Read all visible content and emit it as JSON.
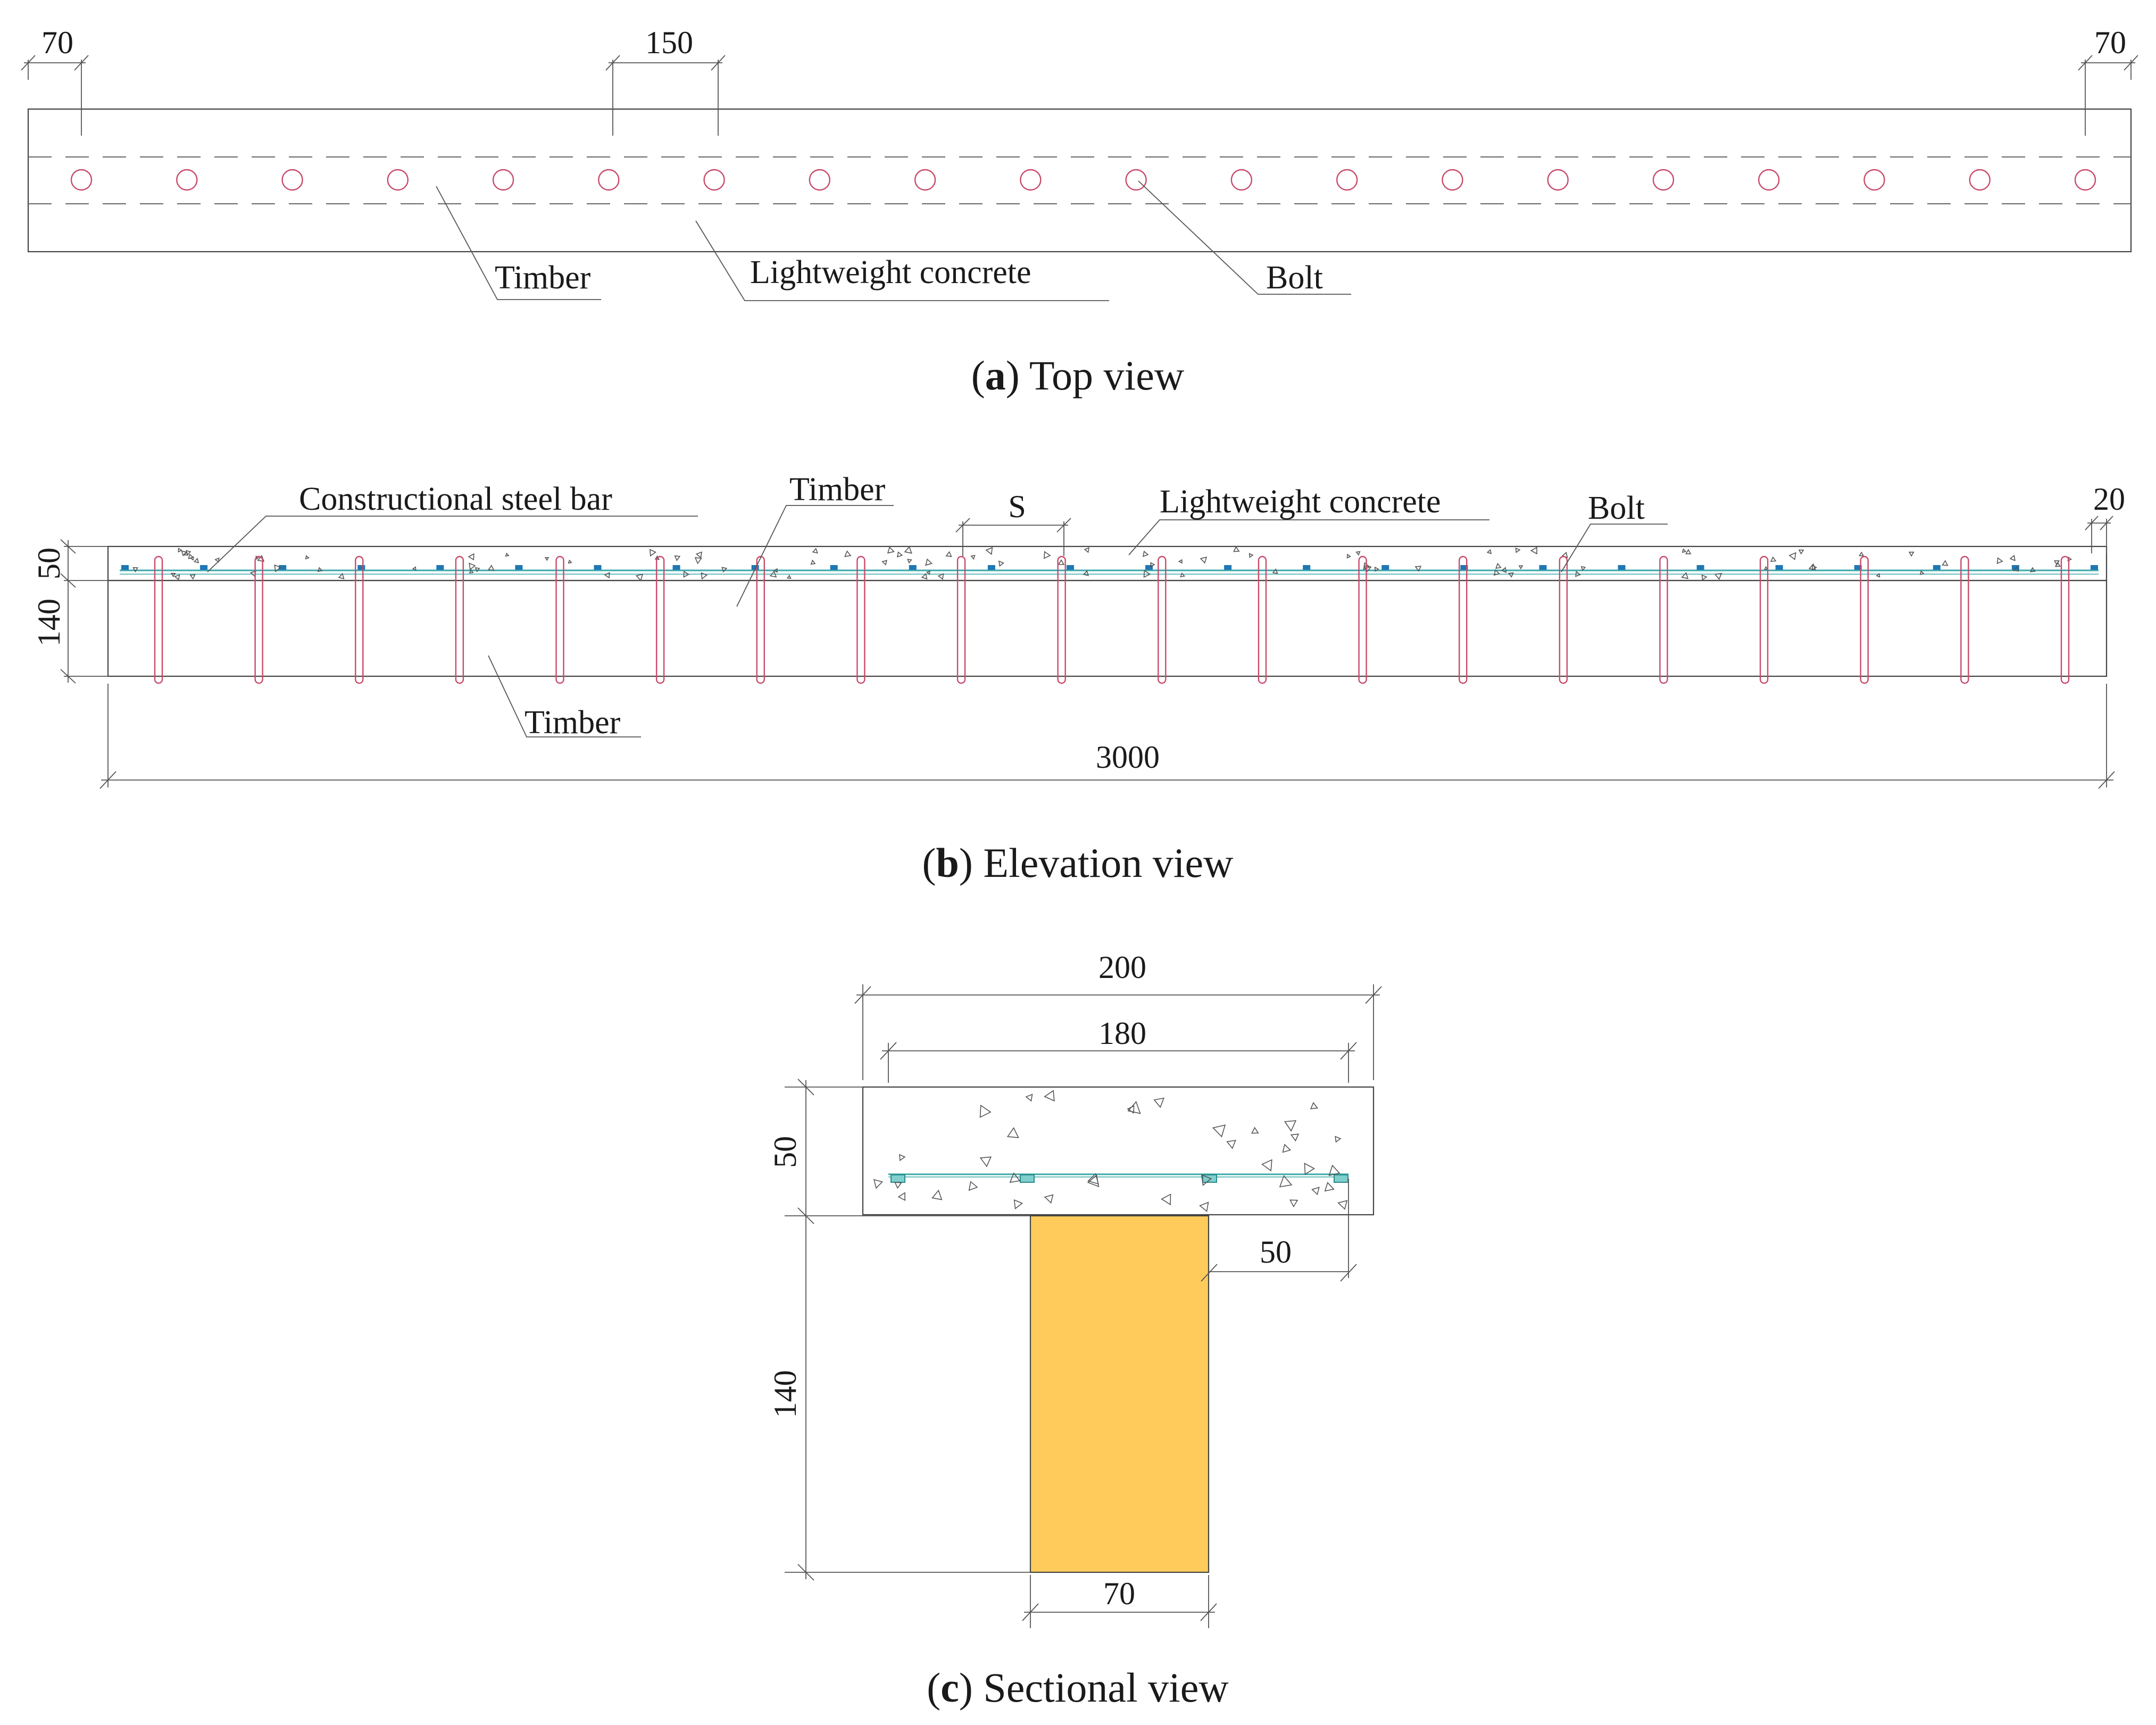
{
  "colors": {
    "timber_fill": "#FFCC5C",
    "bolt_stroke": "#C94A6A",
    "steel_bar": "#3AA9A9",
    "bar_marker": "#1F77B4",
    "line": "#444444"
  },
  "top_view": {
    "dims": {
      "left_edge": "70",
      "bolt_spacing": "150",
      "right_edge": "70"
    },
    "labels": {
      "timber": "Timber",
      "concrete": "Lightweight concrete",
      "bolt": "Bolt"
    },
    "bolt_count": 20,
    "caption": {
      "letter": "a",
      "text": " Top view",
      "open": "(",
      "close": ")"
    }
  },
  "elevation_view": {
    "dims": {
      "slab": "50",
      "timber": "140",
      "spacing": "S",
      "edge": "20",
      "length": "3000"
    },
    "labels": {
      "steel_bar": "Constructional steel bar",
      "timber_top": "Timber",
      "concrete": "Lightweight concrete",
      "bolt": "Bolt",
      "timber_bottom": "Timber"
    },
    "bolt_count": 20,
    "caption": {
      "letter": "b",
      "text": " Elevation view",
      "open": "(",
      "close": ")"
    }
  },
  "sectional_view": {
    "dims": {
      "slab_width": "200",
      "bar_width": "180",
      "slab_depth": "50",
      "timber_depth": "140",
      "offset": "50",
      "timber_width": "70"
    },
    "caption": {
      "letter": "c",
      "text": " Sectional view",
      "open": "(",
      "close": ")"
    }
  }
}
